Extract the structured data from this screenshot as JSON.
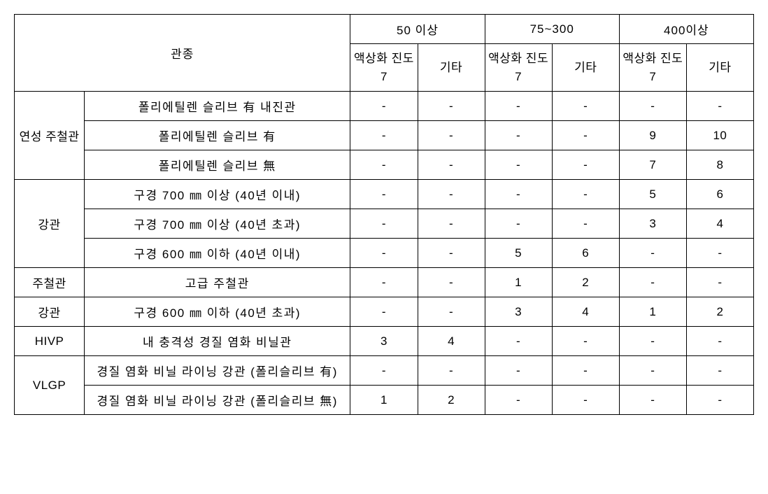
{
  "headers": {
    "pipeType": "관종",
    "groups": [
      "50 이상",
      "75~300",
      "400이상"
    ],
    "subA": "액상화 진도7",
    "subB": "기타"
  },
  "categories": {
    "ductile": "연성 주철관",
    "steel1": "강관",
    "castIron": "주철관",
    "steel2": "강관",
    "hivp": "HIVP",
    "vlgp": "VLGP"
  },
  "rows": {
    "r1": {
      "desc": "폴리에틸렌 슬리브 有 내진관",
      "v": [
        "-",
        "-",
        "-",
        "-",
        "-",
        "-"
      ]
    },
    "r2": {
      "desc": "폴리에틸렌 슬리브 有",
      "v": [
        "-",
        "-",
        "-",
        "-",
        "9",
        "10"
      ]
    },
    "r3": {
      "desc": "폴리에틸렌 슬리브 無",
      "v": [
        "-",
        "-",
        "-",
        "-",
        "7",
        "8"
      ]
    },
    "r4": {
      "desc": "구경 700 ㎜ 이상 (40년 이내)",
      "v": [
        "-",
        "-",
        "-",
        "-",
        "5",
        "6"
      ]
    },
    "r5": {
      "desc": "구경 700 ㎜ 이상 (40년 초과)",
      "v": [
        "-",
        "-",
        "-",
        "-",
        "3",
        "4"
      ]
    },
    "r6": {
      "desc": "구경 600 ㎜ 이하 (40년 이내)",
      "v": [
        "-",
        "-",
        "5",
        "6",
        "-",
        "-"
      ]
    },
    "r7": {
      "desc": "고급 주철관",
      "v": [
        "-",
        "-",
        "1",
        "2",
        "-",
        "-"
      ]
    },
    "r8": {
      "desc": "구경 600 ㎜ 이하 (40년 초과)",
      "v": [
        "-",
        "-",
        "3",
        "4",
        "1",
        "2"
      ]
    },
    "r9": {
      "desc": "내 충격성 경질 염화 비닐관",
      "v": [
        "3",
        "4",
        "-",
        "-",
        "-",
        "-"
      ]
    },
    "r10": {
      "desc": "경질 염화 비닐 라이닝 강관 (폴리슬리브 有)",
      "v": [
        "-",
        "-",
        "-",
        "-",
        "-",
        "-"
      ]
    },
    "r11": {
      "desc": "경질 염화 비닐 라이닝 강관 (폴리슬리브 無)",
      "v": [
        "1",
        "2",
        "-",
        "-",
        "-",
        "-"
      ]
    }
  }
}
